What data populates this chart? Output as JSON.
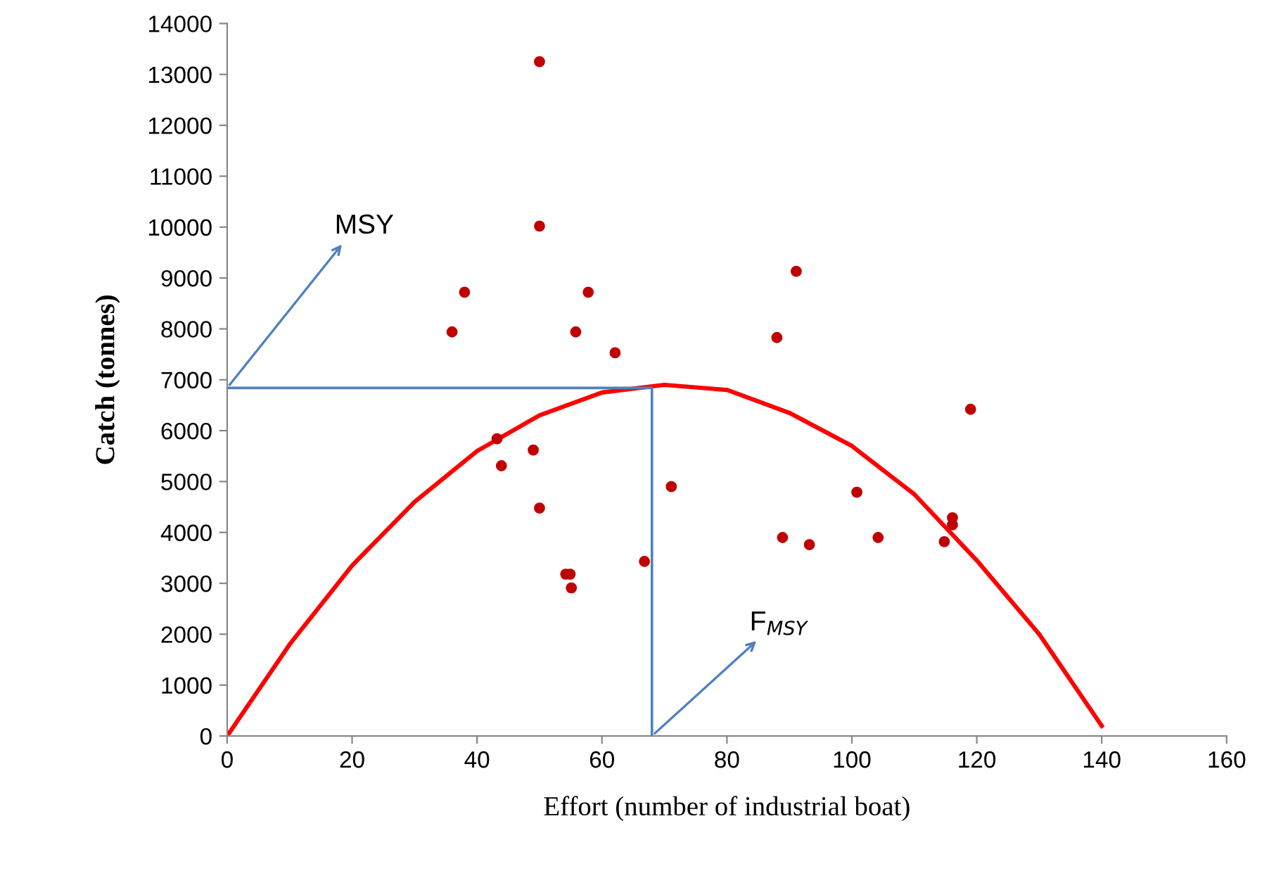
{
  "chart_data": {
    "type": "scatter",
    "xlabel": "Effort (number of industrial boat)",
    "ylabel": "Catch (tonnes)",
    "xlim": [
      0,
      160
    ],
    "ylim": [
      0,
      14000
    ],
    "xticks": [
      0,
      20,
      40,
      60,
      80,
      100,
      120,
      140,
      160
    ],
    "yticks": [
      0,
      1000,
      2000,
      3000,
      4000,
      5000,
      6000,
      7000,
      8000,
      9000,
      10000,
      11000,
      12000,
      13000,
      14000
    ],
    "grid": false,
    "legend": false,
    "marker": "circle",
    "series": [
      {
        "color": "#c00000",
        "x": [
          50,
          50,
          38,
          57.8,
          36,
          55.8,
          62.1,
          43.2,
          43.9,
          49,
          50,
          54.2,
          54.9,
          55.1,
          66.8,
          71.1,
          91.1,
          88,
          119,
          100.8,
          88.9,
          93.2,
          104.2,
          114.8,
          116.1,
          116.1
        ],
        "values": [
          13250,
          10020,
          8720,
          8720,
          7940,
          7940,
          7530,
          5840,
          5310,
          5620,
          4480,
          3180,
          3180,
          2910,
          3430,
          4900,
          9130,
          7830,
          6420,
          4790,
          3900,
          3760,
          3900,
          3820,
          4290,
          4150
        ]
      },
      {
        "type": "line",
        "color": "#ff0000",
        "marker": "none",
        "x": [
          0,
          10,
          20,
          30,
          40,
          50,
          60,
          70,
          80,
          90,
          100,
          110,
          120,
          130,
          140
        ],
        "values": [
          0,
          1800,
          3350,
          4600,
          5600,
          6300,
          6750,
          6900,
          6800,
          6350,
          5700,
          4750,
          3450,
          2000,
          200
        ]
      },
      {
        "type": "line",
        "color": "#4f81bd",
        "marker": "none",
        "x": [
          0,
          68,
          68
        ],
        "values": [
          6840,
          6840,
          0
        ]
      }
    ],
    "annotations": [
      {
        "text": "MSY",
        "x": 0,
        "y": 6840
      },
      {
        "text": "F$_{MSY}$",
        "x": 68,
        "y": 0
      }
    ]
  }
}
